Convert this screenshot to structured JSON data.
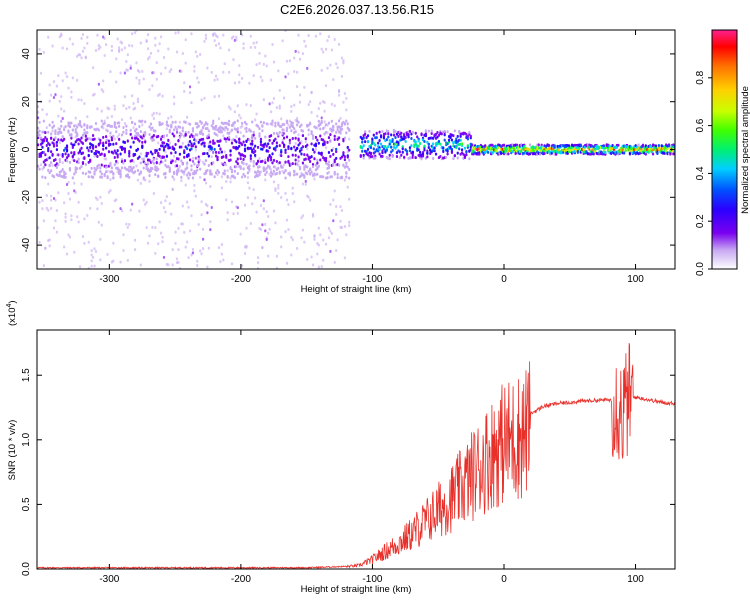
{
  "title": "C2E6.2026.037.13.56.R15",
  "chart_data": [
    {
      "type": "heatmap",
      "name": "spectrogram",
      "xlabel": "Height of straight line (km)",
      "ylabel": "Frequency (Hz)",
      "xlim": [
        -355,
        130
      ],
      "ylim": [
        -50,
        50
      ],
      "xticks": [
        -300,
        -200,
        -100,
        0,
        100
      ],
      "yticks": [
        -40,
        -20,
        0,
        20,
        40
      ],
      "colorbar": {
        "label": "Normalized spectral amplitude",
        "range": [
          0,
          1
        ],
        "ticks": [
          "0.0",
          "0.2",
          "0.4",
          "0.6",
          "0.8"
        ],
        "colormap": [
          "#ffffff",
          "#c6a6f2",
          "#7a00f0",
          "#2a00ff",
          "#0050ff",
          "#00d0ff",
          "#00f070",
          "#40ff00",
          "#c8ff00",
          "#ffd000",
          "#ff7000",
          "#ff0000",
          "#ff2090"
        ]
      },
      "segments": [
        {
          "x_from": -355,
          "x_to": -118,
          "center_hz": 0,
          "core_halfwidth_hz": 10,
          "peak": 0.3,
          "note": "broad noisy band with scattered points across full range"
        },
        {
          "x_from": -110,
          "x_to": -25,
          "center_hz": 2,
          "core_halfwidth_hz": 6,
          "peak": 0.55
        },
        {
          "x_from": -25,
          "x_to": 130,
          "center_hz": 0,
          "core_halfwidth_hz": 2,
          "peak": 0.95,
          "note": "narrow intense line"
        }
      ]
    },
    {
      "type": "line",
      "name": "snr",
      "xlabel": "Height of straight line (km)",
      "ylabel": "SNR (10 * v/v)",
      "multiplier": "(x10",
      "multiplier_exp": "4",
      "xlim": [
        -355,
        130
      ],
      "ylim": [
        0,
        1.85
      ],
      "xticks": [
        -300,
        -200,
        -100,
        0,
        100
      ],
      "yticks": [
        "0.0",
        "0.5",
        "1.0",
        "1.5"
      ],
      "color": "#e8302a",
      "series": [
        {
          "name": "SNR",
          "x": [
            -355,
            -150,
            -120,
            -110,
            -100,
            -90,
            -80,
            -70,
            -60,
            -50,
            -40,
            -30,
            -20,
            -10,
            0,
            10,
            20,
            30,
            40,
            60,
            80,
            85,
            90,
            95,
            100,
            120,
            130
          ],
          "y": [
            0.01,
            0.01,
            0.02,
            0.03,
            0.08,
            0.15,
            0.22,
            0.3,
            0.4,
            0.5,
            0.6,
            0.72,
            0.85,
            0.98,
            1.08,
            1.12,
            1.2,
            1.26,
            1.28,
            1.3,
            1.31,
            1.3,
            1.2,
            1.32,
            1.33,
            1.29,
            1.28
          ]
        }
      ]
    }
  ]
}
